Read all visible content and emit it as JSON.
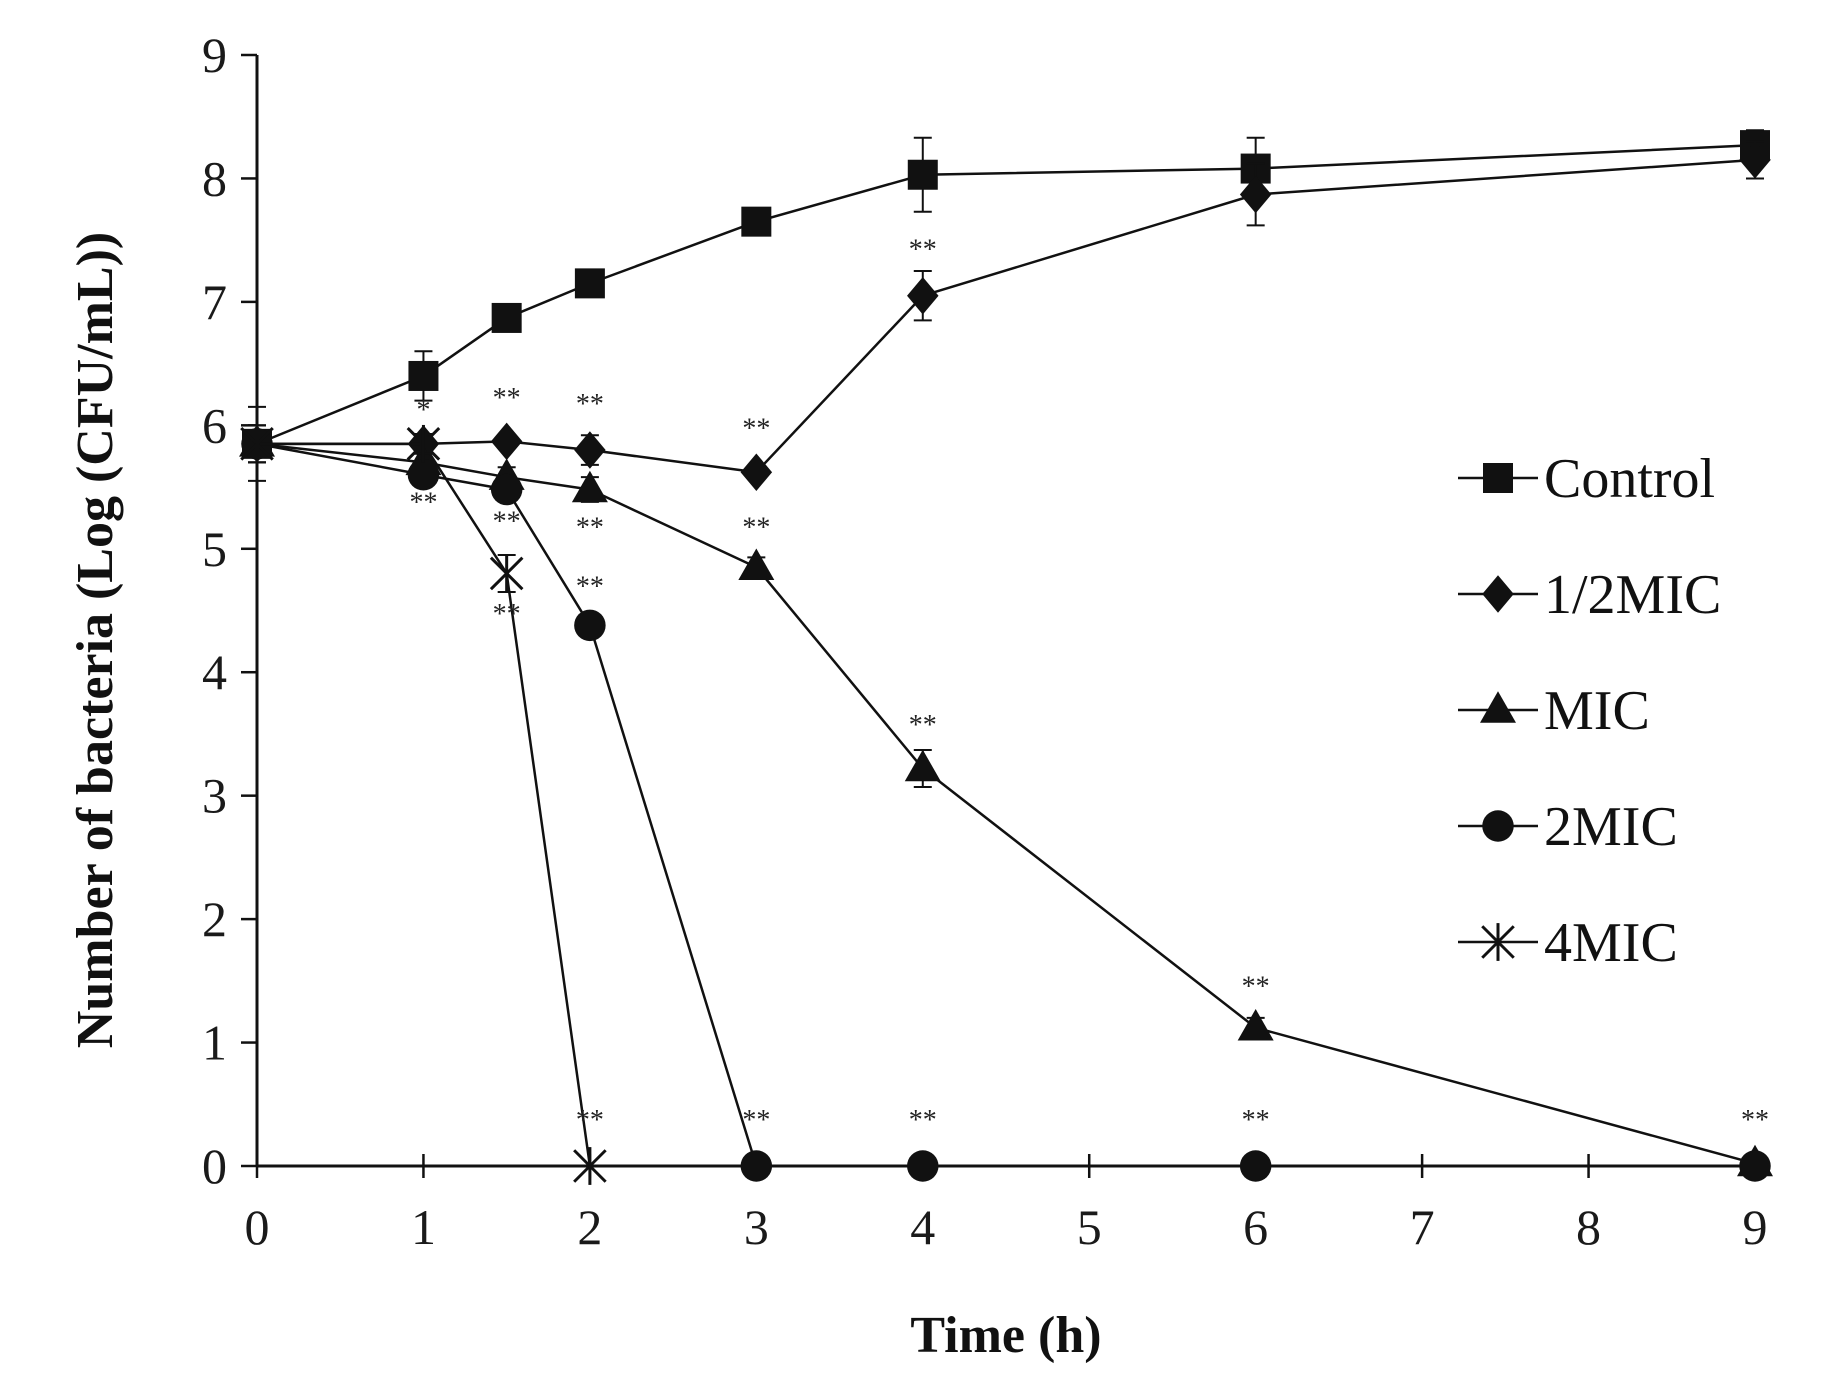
{
  "chart_data": {
    "type": "line",
    "title": "",
    "xlabel": "Time (h)",
    "ylabel": "Number of bacteria (Log (CFU/mL))",
    "ylim": [
      0,
      9
    ],
    "grid": false,
    "x_ticks": [
      {
        "label": "0",
        "value": 0
      },
      {
        "label": "1",
        "value": 1
      },
      {
        "label": "2",
        "value": 2
      },
      {
        "label": "3",
        "value": 3
      },
      {
        "label": "4",
        "value": 4
      },
      {
        "label": "5",
        "value": 5
      },
      {
        "label": "6",
        "value": 6
      },
      {
        "label": "7",
        "value": 7
      },
      {
        "label": "8",
        "value": 8
      },
      {
        "label": "9",
        "value": 9
      }
    ],
    "y_ticks": [
      "0",
      "1",
      "2",
      "3",
      "4",
      "5",
      "6",
      "7",
      "8",
      "9"
    ],
    "legend_position": "right",
    "series": [
      {
        "name": "Control",
        "marker": "square",
        "x": [
          0,
          1,
          1.5,
          2,
          3,
          4,
          6,
          9
        ],
        "values": [
          5.85,
          6.4,
          6.87,
          7.15,
          7.65,
          8.03,
          8.08,
          8.27
        ],
        "errors": [
          0.15,
          0.2,
          0.08,
          0.08,
          0.1,
          0.3,
          0.25,
          0.12
        ]
      },
      {
        "name": "1/2MIC",
        "marker": "diamond",
        "x": [
          0,
          1,
          1.5,
          2,
          3,
          4,
          6,
          9
        ],
        "values": [
          5.85,
          5.85,
          5.87,
          5.8,
          5.62,
          7.05,
          7.87,
          8.15
        ],
        "errors": [
          0.15,
          0.05,
          0.05,
          0.12,
          0.05,
          0.2,
          0.25,
          0.15
        ]
      },
      {
        "name": "MIC",
        "marker": "triangle",
        "x": [
          0,
          1,
          1.5,
          2,
          3,
          4,
          6,
          9
        ],
        "values": [
          5.85,
          5.7,
          5.58,
          5.48,
          4.85,
          3.22,
          1.12,
          0.02
        ],
        "errors": [
          0.15,
          0.08,
          0.08,
          0.1,
          0.08,
          0.15,
          0.08,
          0.03
        ]
      },
      {
        "name": "2MIC",
        "marker": "circle",
        "x": [
          0,
          1,
          1.5,
          2,
          3,
          4,
          6,
          9
        ],
        "values": [
          5.85,
          5.6,
          5.48,
          4.38,
          0,
          0,
          0,
          0
        ],
        "errors": [
          0.15,
          0.08,
          0.08,
          0.05,
          0,
          0,
          0,
          0
        ]
      },
      {
        "name": "4MIC",
        "marker": "asterisk",
        "x": [
          0,
          1,
          1.5,
          2
        ],
        "values": [
          5.85,
          5.85,
          4.8,
          0
        ],
        "errors": [
          0.3,
          0.08,
          0.15,
          0
        ]
      }
    ],
    "annotations": [
      {
        "text": "*",
        "x": 1,
        "y": 6.05
      },
      {
        "text": "**",
        "x": 1.5,
        "y": 6.15
      },
      {
        "text": "**",
        "x": 2,
        "y": 6.1
      },
      {
        "text": "**",
        "x": 3,
        "y": 5.9
      },
      {
        "text": "**",
        "x": 4,
        "y": 7.35
      },
      {
        "text": "**",
        "x": 1,
        "y": 5.3
      },
      {
        "text": "**",
        "x": 1.5,
        "y": 5.15
      },
      {
        "text": "**",
        "x": 2,
        "y": 5.1
      },
      {
        "text": "**",
        "x": 3,
        "y": 5.1
      },
      {
        "text": "**",
        "x": 2,
        "y": 4.62
      },
      {
        "text": "**",
        "x": 1.5,
        "y": 4.4
      },
      {
        "text": "**",
        "x": 4,
        "y": 3.5
      },
      {
        "text": "**",
        "x": 6,
        "y": 1.38
      },
      {
        "text": "**",
        "x": 2,
        "y": 0.3
      },
      {
        "text": "**",
        "x": 3,
        "y": 0.3
      },
      {
        "text": "**",
        "x": 4,
        "y": 0.3
      },
      {
        "text": "**",
        "x": 6,
        "y": 0.3
      },
      {
        "text": "**",
        "x": 9,
        "y": 0.3
      }
    ]
  }
}
